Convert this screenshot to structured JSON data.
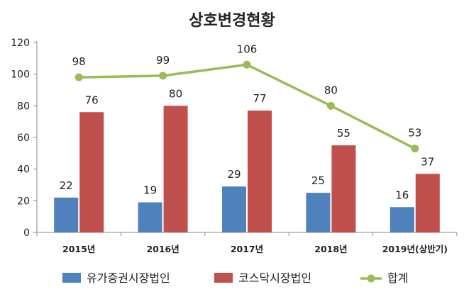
{
  "chart_data": {
    "type": "bar",
    "title": "상호변경현황",
    "categories": [
      "2015년",
      "2016년",
      "2017년",
      "2018년",
      "2019년(상반기)"
    ],
    "series": [
      {
        "name": "유가증권시장법인",
        "type": "bar",
        "color": "#4F81BD",
        "values": [
          22,
          19,
          29,
          25,
          16
        ]
      },
      {
        "name": "코스닥시장법인",
        "type": "bar",
        "color": "#C0504D",
        "values": [
          76,
          80,
          77,
          55,
          37
        ]
      },
      {
        "name": "합계",
        "type": "line",
        "color": "#9BBB59",
        "values": [
          98,
          99,
          106,
          80,
          53
        ]
      }
    ],
    "ylim": [
      0,
      120
    ],
    "yticks": [
      0,
      20,
      40,
      60,
      80,
      100,
      120
    ],
    "grid": false,
    "legend_position": "bottom"
  }
}
